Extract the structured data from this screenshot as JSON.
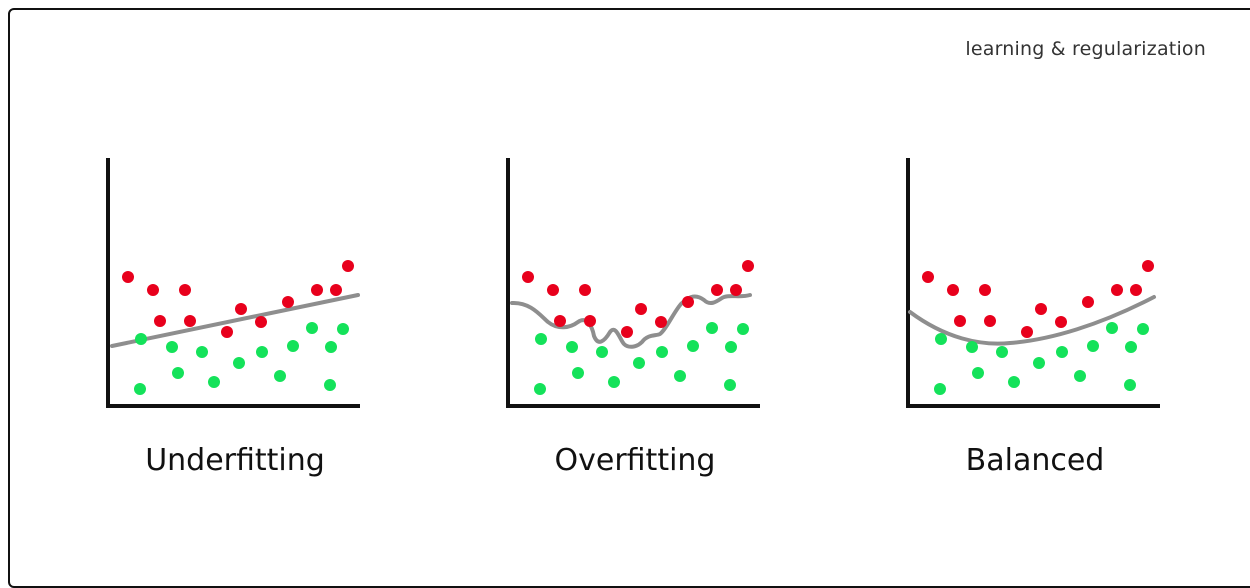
{
  "header": {
    "title": "learning & regularization"
  },
  "colors": {
    "red_class": "#e8001c",
    "green_class": "#14e25a",
    "fit_line": "#8e8e8e",
    "axis": "#111111"
  },
  "panels": [
    {
      "id": "underfitting",
      "label": "Underfitting",
      "fit_type": "linear"
    },
    {
      "id": "overfitting",
      "label": "Overfitting",
      "fit_type": "wiggly"
    },
    {
      "id": "balanced",
      "label": "Balanced",
      "fit_type": "quadratic"
    }
  ]
}
